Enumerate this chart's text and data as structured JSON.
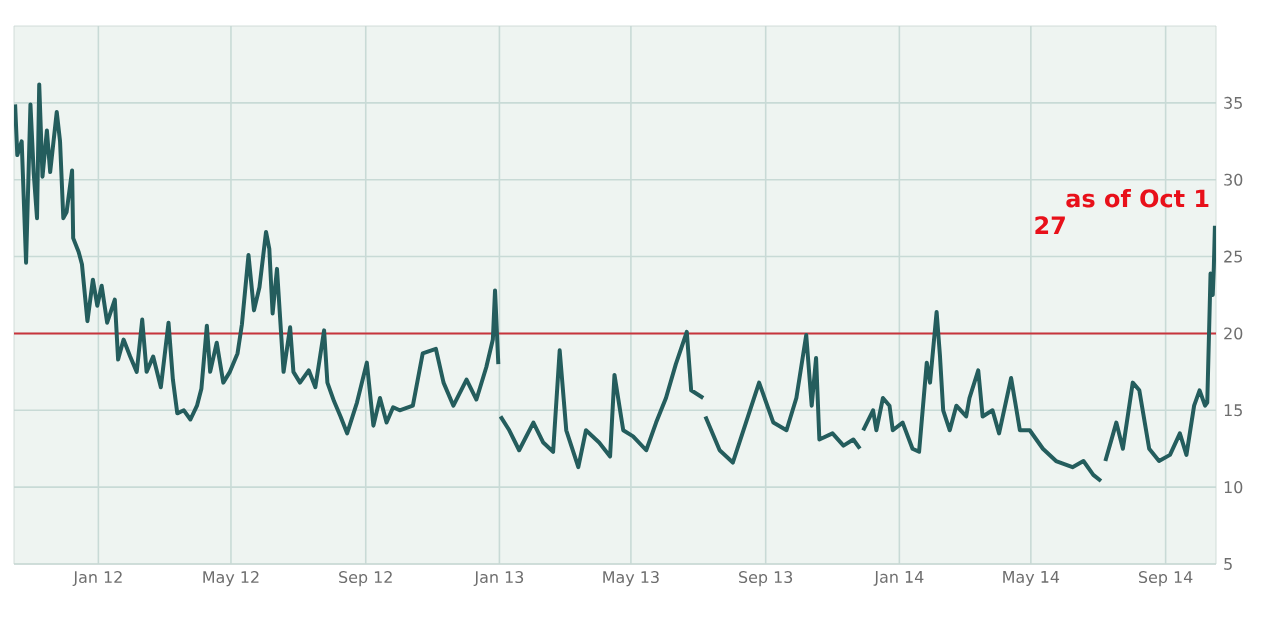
{
  "chart_data": {
    "type": "line",
    "x": [
      "2011-10-17",
      "2011-10-19",
      "2011-10-23",
      "2011-10-27",
      "2011-10-31",
      "2011-11-03",
      "2011-11-06",
      "2011-11-08",
      "2011-11-11",
      "2011-11-15",
      "2011-11-18",
      "2011-11-24",
      "2011-11-27",
      "2011-11-30",
      "2011-12-03",
      "2011-12-08",
      "2011-12-09",
      "2011-12-14",
      "2011-12-17",
      "2011-12-22",
      "2011-12-27",
      "2011-12-31",
      "2012-01-04",
      "2012-01-09",
      "2012-01-16",
      "2012-01-19",
      "2012-01-24",
      "2012-01-30",
      "2012-02-05",
      "2012-02-10",
      "2012-02-14",
      "2012-02-20",
      "2012-02-27",
      "2012-03-05",
      "2012-03-09",
      "2012-03-13",
      "2012-03-19",
      "2012-03-25",
      "2012-03-31",
      "2012-04-04",
      "2012-04-09",
      "2012-04-12",
      "2012-04-18",
      "2012-04-24",
      "2012-04-30",
      "2012-05-07",
      "2012-05-11",
      "2012-05-17",
      "2012-05-22",
      "2012-05-27",
      "2012-06-02",
      "2012-06-05",
      "2012-06-08",
      "2012-06-12",
      "2012-06-18",
      "2012-06-24",
      "2012-06-27",
      "2012-07-03",
      "2012-07-11",
      "2012-07-17",
      "2012-07-25",
      "2012-07-28",
      "2012-08-03",
      "2012-08-09",
      "2012-08-15",
      "2012-08-24",
      "2012-09-02",
      "2012-09-08",
      "2012-09-14",
      "2012-09-20",
      "2012-09-26",
      "2012-10-02",
      "2012-10-14",
      "2012-10-23",
      "2012-11-04",
      "2012-11-11",
      "2012-11-20",
      "2012-12-02",
      "2012-12-11",
      "2012-12-20",
      "2012-12-26",
      "2012-12-28",
      "2012-12-31",
      "2013-01-01",
      "2013-01-02",
      "2013-01-10",
      "2013-01-19",
      "2013-02-01",
      "2013-02-10",
      "2013-02-19",
      "2013-02-25",
      "2013-03-03",
      "2013-03-14",
      "2013-03-21",
      "2013-04-02",
      "2013-04-12",
      "2013-04-16",
      "2013-04-24",
      "2013-05-03",
      "2013-05-15",
      "2013-05-24",
      "2013-06-02",
      "2013-06-11",
      "2013-06-21",
      "2013-06-25",
      "2013-07-06",
      "2013-07-07",
      "2013-07-08",
      "2013-07-21",
      "2013-08-02",
      "2013-08-14",
      "2013-08-26",
      "2013-09-08",
      "2013-09-20",
      "2013-09-29",
      "2013-10-08",
      "2013-10-13",
      "2013-10-17",
      "2013-10-20",
      "2013-11-01",
      "2013-11-11",
      "2013-11-20",
      "2013-11-26",
      "2013-11-27",
      "2013-11-29",
      "2013-12-08",
      "2013-12-11",
      "2013-12-17",
      "2013-12-23",
      "2013-12-26",
      "2014-01-04",
      "2014-01-13",
      "2014-01-19",
      "2014-01-26",
      "2014-01-29",
      "2014-02-04",
      "2014-02-07",
      "2014-02-10",
      "2014-02-16",
      "2014-02-22",
      "2014-03-03",
      "2014-03-06",
      "2014-03-14",
      "2014-03-18",
      "2014-03-27",
      "2014-04-02",
      "2014-04-13",
      "2014-04-21",
      "2014-04-30",
      "2014-05-12",
      "2014-05-24",
      "2014-06-08",
      "2014-06-18",
      "2014-06-27",
      "2014-07-04",
      "2014-07-06",
      "2014-07-08",
      "2014-07-18",
      "2014-07-24",
      "2014-08-02",
      "2014-08-08",
      "2014-08-17",
      "2014-08-26",
      "2014-09-05",
      "2014-09-14",
      "2014-09-20",
      "2014-09-27",
      "2014-10-02",
      "2014-10-07",
      "2014-10-09",
      "2014-10-12",
      "2014-10-14",
      "2014-10-15",
      "2014-10-16"
    ],
    "series": [
      {
        "color": "#245d5d",
        "values": [
          34.9,
          31.6,
          32.5,
          24.6,
          34.9,
          30.4,
          27.5,
          36.2,
          30.2,
          33.2,
          30.5,
          34.4,
          32.5,
          27.5,
          27.9,
          30.6,
          26.2,
          25.3,
          24.5,
          20.8,
          23.5,
          21.8,
          23.1,
          20.7,
          22.2,
          18.3,
          19.6,
          18.5,
          17.5,
          20.9,
          17.5,
          18.5,
          16.5,
          20.7,
          17.0,
          14.8,
          15.0,
          14.4,
          15.3,
          16.4,
          20.5,
          17.5,
          19.4,
          16.8,
          17.5,
          18.7,
          20.6,
          25.1,
          21.5,
          23.0,
          26.6,
          25.5,
          21.3,
          24.2,
          17.5,
          20.4,
          17.5,
          16.8,
          17.6,
          16.5,
          20.2,
          16.8,
          15.6,
          14.6,
          13.5,
          15.5,
          18.1,
          14.0,
          15.8,
          14.2,
          15.2,
          15.0,
          15.3,
          18.7,
          19.0,
          16.8,
          15.3,
          17.0,
          15.7,
          17.8,
          19.6,
          22.8,
          18.0,
          null,
          14.6,
          13.7,
          12.4,
          14.2,
          12.9,
          12.3,
          18.9,
          13.7,
          11.3,
          13.7,
          12.9,
          12.0,
          17.3,
          13.7,
          13.3,
          12.4,
          14.2,
          15.8,
          18.0,
          20.1,
          16.3,
          15.8,
          null,
          14.6,
          12.4,
          11.6,
          14.2,
          16.8,
          14.2,
          13.7,
          15.8,
          19.9,
          15.3,
          18.4,
          13.1,
          13.5,
          12.7,
          13.1,
          12.5,
          null,
          13.7,
          15.0,
          13.7,
          15.8,
          15.3,
          13.7,
          14.2,
          12.5,
          12.3,
          18.1,
          16.8,
          21.4,
          18.6,
          15.0,
          13.7,
          15.3,
          14.6,
          15.8,
          17.6,
          14.6,
          15.0,
          13.5,
          17.1,
          13.7,
          13.7,
          12.5,
          11.7,
          11.3,
          11.7,
          10.8,
          10.4,
          null,
          11.7,
          14.2,
          12.5,
          16.8,
          16.3,
          12.5,
          11.7,
          12.1,
          13.5,
          12.1,
          15.3,
          16.3,
          15.3,
          15.5,
          23.9,
          22.5,
          24.3,
          27.0
        ]
      }
    ],
    "xlim": [
      "2011-10-16",
      "2014-10-17"
    ],
    "xticks": [
      {
        "value": "2012-01-01",
        "label": "Jan 12"
      },
      {
        "value": "2012-05-01",
        "label": "May 12"
      },
      {
        "value": "2012-09-01",
        "label": "Sep 12"
      },
      {
        "value": "2013-01-01",
        "label": "Jan 13"
      },
      {
        "value": "2013-05-01",
        "label": "May 13"
      },
      {
        "value": "2013-09-01",
        "label": "Sep 13"
      },
      {
        "value": "2014-01-01",
        "label": "Jan 14"
      },
      {
        "value": "2014-05-01",
        "label": "May 14"
      },
      {
        "value": "2014-09-01",
        "label": "Sep 14"
      }
    ],
    "ylim": [
      5,
      40
    ],
    "yticks": [
      5,
      10,
      15,
      20,
      25,
      30,
      35
    ],
    "grid": true,
    "ref_lines": [
      {
        "axis": "y",
        "value": 20,
        "color": "#c8343c"
      }
    ],
    "annotations": [
      "as of Oct 1",
      "27"
    ]
  }
}
